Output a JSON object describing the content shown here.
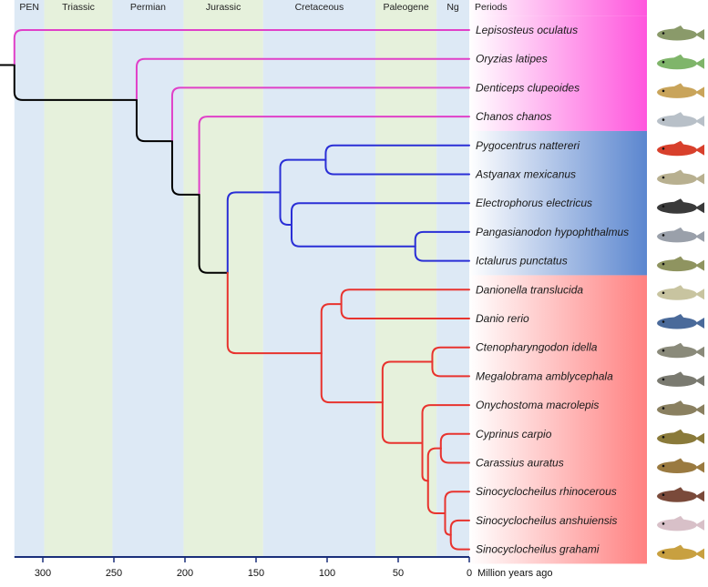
{
  "chart_data": {
    "type": "phylogenetic-tree",
    "axis": {
      "title": "Million years ago",
      "ticks": [
        300,
        250,
        200,
        150,
        100,
        50,
        0
      ],
      "range": [
        320,
        0
      ]
    },
    "periods_header": "Periods",
    "periods": [
      {
        "name": "PEN",
        "start": 320,
        "end": 299,
        "color": "#dde9f5"
      },
      {
        "name": "Triassic",
        "start": 299,
        "end": 251,
        "color": "#e6f1dc"
      },
      {
        "name": "Permian",
        "start": 251,
        "end": 201,
        "color": "#dde9f5"
      },
      {
        "name": "Jurassic",
        "start": 201,
        "end": 145,
        "color": "#e6f1dc"
      },
      {
        "name": "Cretaceous",
        "start": 145,
        "end": 66,
        "color": "#dde9f5"
      },
      {
        "name": "Paleogene",
        "start": 66,
        "end": 23,
        "color": "#e6f1dc"
      },
      {
        "name": "Ng",
        "start": 23,
        "end": 0,
        "color": "#dde9f5"
      }
    ],
    "taxa": [
      "Lepisosteus oculatus",
      "Oryzias latipes",
      "Denticeps clupeoides",
      "Chanos chanos",
      "Pygocentrus nattereri",
      "Astyanax mexicanus",
      "Electrophorus electricus",
      "Pangasianodon hypophthalmus",
      "Ictalurus punctatus",
      "Danionella translucida",
      "Danio rerio",
      "Ctenopharyngodon idella",
      "Megalobrama amblycephala",
      "Onychostoma macrolepis",
      "Cyprinus carpio",
      "Carassius auratus",
      "Sinocyclocheilus rhinocerous",
      "Sinocyclocheilus anshuiensis",
      "Sinocyclocheilus grahami"
    ],
    "tree": {
      "age": 320,
      "color": "#000000",
      "children": [
        {
          "taxon": 0,
          "color": "#e040c8"
        },
        {
          "age": 234,
          "color": "#000000",
          "children": [
            {
              "taxon": 1,
              "color": "#e040c8"
            },
            {
              "age": 209,
              "color": "#000000",
              "children": [
                {
                  "taxon": 2,
                  "color": "#e040c8"
                },
                {
                  "age": 190,
                  "color": "#000000",
                  "children": [
                    {
                      "taxon": 3,
                      "color": "#e040c8"
                    },
                    {
                      "age": 170,
                      "color": "#000000",
                      "children": [
                        {
                          "age": 133,
                          "color": "#2a2fd6",
                          "children": [
                            {
                              "age": 101,
                              "color": "#2a2fd6",
                              "children": [
                                {
                                  "taxon": 4,
                                  "color": "#2a2fd6"
                                },
                                {
                                  "taxon": 5,
                                  "color": "#2a2fd6"
                                }
                              ]
                            },
                            {
                              "age": 125,
                              "color": "#2a2fd6",
                              "children": [
                                {
                                  "taxon": 6,
                                  "color": "#2a2fd6"
                                },
                                {
                                  "age": 38,
                                  "color": "#2a2fd6",
                                  "children": [
                                    {
                                      "taxon": 7,
                                      "color": "#2a2fd6"
                                    },
                                    {
                                      "taxon": 8,
                                      "color": "#2a2fd6"
                                    }
                                  ]
                                }
                              ]
                            }
                          ]
                        },
                        {
                          "age": 104,
                          "color": "#e8332e",
                          "children": [
                            {
                              "age": 90,
                              "color": "#e8332e",
                              "children": [
                                {
                                  "taxon": 9,
                                  "color": "#e8332e"
                                },
                                {
                                  "taxon": 10,
                                  "color": "#e8332e"
                                }
                              ]
                            },
                            {
                              "age": 61,
                              "color": "#e8332e",
                              "children": [
                                {
                                  "age": 26,
                                  "color": "#e8332e",
                                  "children": [
                                    {
                                      "taxon": 11,
                                      "color": "#e8332e"
                                    },
                                    {
                                      "taxon": 12,
                                      "color": "#e8332e"
                                    }
                                  ]
                                },
                                {
                                  "age": 33,
                                  "color": "#e8332e",
                                  "children": [
                                    {
                                      "taxon": 13,
                                      "color": "#e8332e"
                                    },
                                    {
                                      "age": 29,
                                      "color": "#e8332e",
                                      "children": [
                                        {
                                          "age": 20,
                                          "color": "#e8332e",
                                          "children": [
                                            {
                                              "taxon": 14,
                                              "color": "#e8332e"
                                            },
                                            {
                                              "taxon": 15,
                                              "color": "#e8332e"
                                            }
                                          ]
                                        },
                                        {
                                          "age": 17,
                                          "color": "#e8332e",
                                          "children": [
                                            {
                                              "taxon": 16,
                                              "color": "#e8332e"
                                            },
                                            {
                                              "age": 13,
                                              "color": "#e8332e",
                                              "children": [
                                                {
                                                  "taxon": 17,
                                                  "color": "#e8332e"
                                                },
                                                {
                                                  "taxon": 18,
                                                  "color": "#e8332e"
                                                }
                                              ]
                                            }
                                          ]
                                        }
                                      ]
                                    }
                                  ]
                                }
                              ]
                            }
                          ]
                        }
                      ]
                    }
                  ]
                }
              ]
            }
          ]
        }
      ]
    },
    "groups": [
      {
        "name": "pink-group",
        "from_taxon": 0,
        "to_taxon": 3,
        "color": "#ff55dd"
      },
      {
        "name": "blue-group",
        "from_taxon": 4,
        "to_taxon": 8,
        "color": "#5b86cf"
      },
      {
        "name": "red-group",
        "from_taxon": 9,
        "to_taxon": 18,
        "color": "#ff8080"
      }
    ],
    "fish_colors": [
      "#8a9a6a",
      "#7fb56a",
      "#c9a45a",
      "#b8c0c8",
      "#d8402c",
      "#b8b090",
      "#3a3a3a",
      "#9aa0aa",
      "#8f9460",
      "#c8c4a0",
      "#4a6a9a",
      "#8a8a7a",
      "#7a7a70",
      "#8a8060",
      "#8a7a3a",
      "#9a7a40",
      "#7a4a3a",
      "#d8c0c8",
      "#c8a040"
    ]
  }
}
